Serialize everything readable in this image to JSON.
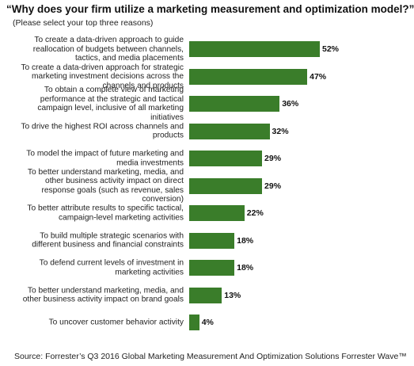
{
  "chart_data": {
    "type": "bar",
    "orientation": "horizontal",
    "title": "“Why does your firm utilize a marketing measurement and optimization model?”",
    "subtitle": "(Please select your top three reasons)",
    "categories": [
      "To create a data-driven approach to guide reallocation of budgets between channels, tactics, and media placements",
      "To create a data-driven approach for strategic marketing investment decisions across the channels and products",
      "To obtain a complete view of marketing performance at the strategic and tactical campaign level, inclusive of all marketing initiatives",
      "To drive the highest ROI across channels and products",
      "To model the impact of future marketing and media investments",
      "To better understand marketing, media, and other business activity impact on direct response goals (such as revenue, sales conversion)",
      "To better attribute results to specific tactical, campaign-level marketing activities",
      "To build multiple strategic scenarios with different business and financial constraints",
      "To defend current levels of investment in marketing activities",
      "To better understand marketing, media, and other business activity impact on brand goals",
      "To uncover customer behavior activity"
    ],
    "values": [
      52,
      47,
      36,
      32,
      29,
      29,
      22,
      18,
      18,
      13,
      4
    ],
    "value_labels": [
      "52%",
      "47%",
      "36%",
      "32%",
      "29%",
      "29%",
      "22%",
      "18%",
      "18%",
      "13%",
      "4%"
    ],
    "color": "#3a7d2a",
    "source": "Source: Forrester’s Q3 2016 Global Marketing Measurement And Optimization Solutions Forrester Wave™"
  }
}
